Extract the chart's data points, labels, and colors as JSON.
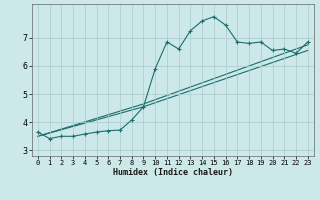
{
  "title": "",
  "xlabel": "Humidex (Indice chaleur)",
  "ylabel": "",
  "background_color": "#cce8e8",
  "grid_color": "#aacccc",
  "line_color": "#1a6e6e",
  "xlim": [
    -0.5,
    23.5
  ],
  "ylim": [
    2.8,
    8.2
  ],
  "xticks": [
    0,
    1,
    2,
    3,
    4,
    5,
    6,
    7,
    8,
    9,
    10,
    11,
    12,
    13,
    14,
    15,
    16,
    17,
    18,
    19,
    20,
    21,
    22,
    23
  ],
  "yticks": [
    3,
    4,
    5,
    6,
    7
  ],
  "line1_x": [
    0,
    1,
    2,
    3,
    4,
    5,
    6,
    7,
    8,
    9,
    10,
    11,
    12,
    13,
    14,
    15,
    16,
    17,
    18,
    19,
    20,
    21,
    22,
    23
  ],
  "line1_y": [
    3.65,
    3.42,
    3.5,
    3.5,
    3.58,
    3.65,
    3.7,
    3.72,
    4.08,
    4.55,
    5.9,
    6.85,
    6.6,
    7.25,
    7.6,
    7.75,
    7.45,
    6.85,
    6.8,
    6.85,
    6.55,
    6.6,
    6.45,
    6.85
  ],
  "line2_x": [
    0,
    9,
    23
  ],
  "line2_y": [
    3.5,
    4.55,
    6.55
  ],
  "line3_x": [
    0,
    9,
    23
  ],
  "line3_y": [
    3.5,
    4.65,
    6.75
  ],
  "figsize": [
    3.2,
    2.0
  ],
  "dpi": 100
}
